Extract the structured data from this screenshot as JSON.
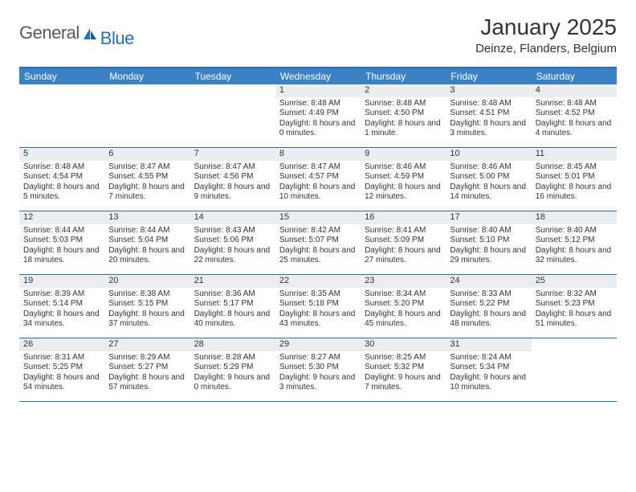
{
  "brand": {
    "part1": "General",
    "part2": "Blue"
  },
  "title": "January 2025",
  "location": "Deinze, Flanders, Belgium",
  "colors": {
    "header_bg": "#3b82c4",
    "header_border": "#2f6fb0",
    "daynum_bg": "#ebedef",
    "text": "#333333",
    "logo_gray": "#5a5a5a",
    "logo_blue": "#2a6db8"
  },
  "dayNames": [
    "Sunday",
    "Monday",
    "Tuesday",
    "Wednesday",
    "Thursday",
    "Friday",
    "Saturday"
  ],
  "weeks": [
    [
      {
        "n": "",
        "sr": "",
        "ss": "",
        "dl": ""
      },
      {
        "n": "",
        "sr": "",
        "ss": "",
        "dl": ""
      },
      {
        "n": "",
        "sr": "",
        "ss": "",
        "dl": ""
      },
      {
        "n": "1",
        "sr": "Sunrise: 8:48 AM",
        "ss": "Sunset: 4:49 PM",
        "dl": "Daylight: 8 hours and 0 minutes."
      },
      {
        "n": "2",
        "sr": "Sunrise: 8:48 AM",
        "ss": "Sunset: 4:50 PM",
        "dl": "Daylight: 8 hours and 1 minute."
      },
      {
        "n": "3",
        "sr": "Sunrise: 8:48 AM",
        "ss": "Sunset: 4:51 PM",
        "dl": "Daylight: 8 hours and 3 minutes."
      },
      {
        "n": "4",
        "sr": "Sunrise: 8:48 AM",
        "ss": "Sunset: 4:52 PM",
        "dl": "Daylight: 8 hours and 4 minutes."
      }
    ],
    [
      {
        "n": "5",
        "sr": "Sunrise: 8:48 AM",
        "ss": "Sunset: 4:54 PM",
        "dl": "Daylight: 8 hours and 5 minutes."
      },
      {
        "n": "6",
        "sr": "Sunrise: 8:47 AM",
        "ss": "Sunset: 4:55 PM",
        "dl": "Daylight: 8 hours and 7 minutes."
      },
      {
        "n": "7",
        "sr": "Sunrise: 8:47 AM",
        "ss": "Sunset: 4:56 PM",
        "dl": "Daylight: 8 hours and 9 minutes."
      },
      {
        "n": "8",
        "sr": "Sunrise: 8:47 AM",
        "ss": "Sunset: 4:57 PM",
        "dl": "Daylight: 8 hours and 10 minutes."
      },
      {
        "n": "9",
        "sr": "Sunrise: 8:46 AM",
        "ss": "Sunset: 4:59 PM",
        "dl": "Daylight: 8 hours and 12 minutes."
      },
      {
        "n": "10",
        "sr": "Sunrise: 8:46 AM",
        "ss": "Sunset: 5:00 PM",
        "dl": "Daylight: 8 hours and 14 minutes."
      },
      {
        "n": "11",
        "sr": "Sunrise: 8:45 AM",
        "ss": "Sunset: 5:01 PM",
        "dl": "Daylight: 8 hours and 16 minutes."
      }
    ],
    [
      {
        "n": "12",
        "sr": "Sunrise: 8:44 AM",
        "ss": "Sunset: 5:03 PM",
        "dl": "Daylight: 8 hours and 18 minutes."
      },
      {
        "n": "13",
        "sr": "Sunrise: 8:44 AM",
        "ss": "Sunset: 5:04 PM",
        "dl": "Daylight: 8 hours and 20 minutes."
      },
      {
        "n": "14",
        "sr": "Sunrise: 8:43 AM",
        "ss": "Sunset: 5:06 PM",
        "dl": "Daylight: 8 hours and 22 minutes."
      },
      {
        "n": "15",
        "sr": "Sunrise: 8:42 AM",
        "ss": "Sunset: 5:07 PM",
        "dl": "Daylight: 8 hours and 25 minutes."
      },
      {
        "n": "16",
        "sr": "Sunrise: 8:41 AM",
        "ss": "Sunset: 5:09 PM",
        "dl": "Daylight: 8 hours and 27 minutes."
      },
      {
        "n": "17",
        "sr": "Sunrise: 8:40 AM",
        "ss": "Sunset: 5:10 PM",
        "dl": "Daylight: 8 hours and 29 minutes."
      },
      {
        "n": "18",
        "sr": "Sunrise: 8:40 AM",
        "ss": "Sunset: 5:12 PM",
        "dl": "Daylight: 8 hours and 32 minutes."
      }
    ],
    [
      {
        "n": "19",
        "sr": "Sunrise: 8:39 AM",
        "ss": "Sunset: 5:14 PM",
        "dl": "Daylight: 8 hours and 34 minutes."
      },
      {
        "n": "20",
        "sr": "Sunrise: 8:38 AM",
        "ss": "Sunset: 5:15 PM",
        "dl": "Daylight: 8 hours and 37 minutes."
      },
      {
        "n": "21",
        "sr": "Sunrise: 8:36 AM",
        "ss": "Sunset: 5:17 PM",
        "dl": "Daylight: 8 hours and 40 minutes."
      },
      {
        "n": "22",
        "sr": "Sunrise: 8:35 AM",
        "ss": "Sunset: 5:18 PM",
        "dl": "Daylight: 8 hours and 43 minutes."
      },
      {
        "n": "23",
        "sr": "Sunrise: 8:34 AM",
        "ss": "Sunset: 5:20 PM",
        "dl": "Daylight: 8 hours and 45 minutes."
      },
      {
        "n": "24",
        "sr": "Sunrise: 8:33 AM",
        "ss": "Sunset: 5:22 PM",
        "dl": "Daylight: 8 hours and 48 minutes."
      },
      {
        "n": "25",
        "sr": "Sunrise: 8:32 AM",
        "ss": "Sunset: 5:23 PM",
        "dl": "Daylight: 8 hours and 51 minutes."
      }
    ],
    [
      {
        "n": "26",
        "sr": "Sunrise: 8:31 AM",
        "ss": "Sunset: 5:25 PM",
        "dl": "Daylight: 8 hours and 54 minutes."
      },
      {
        "n": "27",
        "sr": "Sunrise: 8:29 AM",
        "ss": "Sunset: 5:27 PM",
        "dl": "Daylight: 8 hours and 57 minutes."
      },
      {
        "n": "28",
        "sr": "Sunrise: 8:28 AM",
        "ss": "Sunset: 5:29 PM",
        "dl": "Daylight: 9 hours and 0 minutes."
      },
      {
        "n": "29",
        "sr": "Sunrise: 8:27 AM",
        "ss": "Sunset: 5:30 PM",
        "dl": "Daylight: 9 hours and 3 minutes."
      },
      {
        "n": "30",
        "sr": "Sunrise: 8:25 AM",
        "ss": "Sunset: 5:32 PM",
        "dl": "Daylight: 9 hours and 7 minutes."
      },
      {
        "n": "31",
        "sr": "Sunrise: 8:24 AM",
        "ss": "Sunset: 5:34 PM",
        "dl": "Daylight: 9 hours and 10 minutes."
      },
      {
        "n": "",
        "sr": "",
        "ss": "",
        "dl": ""
      }
    ]
  ]
}
